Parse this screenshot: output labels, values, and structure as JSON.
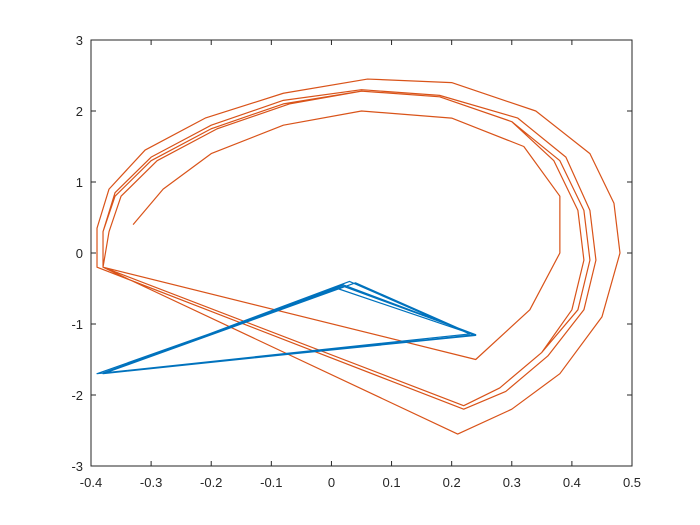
{
  "chart_data": {
    "type": "line",
    "xlim": [
      -0.4,
      0.5
    ],
    "xticks": [
      -0.4,
      -0.3,
      -0.2,
      -0.1,
      0,
      0.1,
      0.2,
      0.3,
      0.4,
      0.5
    ],
    "ylim": [
      -3,
      3
    ],
    "yticks": [
      -3,
      -2,
      -1,
      0,
      1,
      2,
      3
    ],
    "grid": false,
    "series": [
      {
        "color": "#d95319",
        "x": [
          -0.33,
          -0.28,
          -0.2,
          -0.08,
          0.05,
          0.2,
          0.32,
          0.38,
          0.38,
          0.33,
          0.24,
          -0.38,
          -0.37,
          -0.35,
          -0.29,
          -0.19,
          -0.07,
          0.05,
          0.18,
          0.3,
          0.37,
          0.41,
          0.42,
          0.4,
          0.35,
          0.28,
          0.22,
          -0.38,
          -0.38,
          -0.36,
          -0.3,
          -0.2,
          -0.08,
          0.05,
          0.18,
          0.31,
          0.39,
          0.43,
          0.44,
          0.42,
          0.36,
          0.29,
          0.22,
          -0.39,
          -0.39,
          -0.37,
          -0.31,
          -0.21,
          -0.08,
          0.06,
          0.2,
          0.34,
          0.43,
          0.47,
          0.48,
          0.45,
          0.38,
          0.3,
          0.21,
          -0.38,
          -0.38,
          -0.36,
          -0.3,
          -0.2,
          -0.08,
          0.05,
          0.18,
          0.3,
          0.38,
          0.42,
          0.43,
          0.41,
          0.35,
          0.28,
          0.22,
          -0.38
        ],
        "values": [
          0.4,
          0.9,
          1.4,
          1.8,
          2.0,
          1.9,
          1.5,
          0.8,
          0.0,
          -0.8,
          -1.5,
          -0.2,
          0.3,
          0.8,
          1.3,
          1.75,
          2.1,
          2.28,
          2.2,
          1.85,
          1.3,
          0.6,
          -0.1,
          -0.8,
          -1.4,
          -1.9,
          -2.15,
          -0.2,
          0.3,
          0.85,
          1.35,
          1.8,
          2.15,
          2.3,
          2.22,
          1.9,
          1.35,
          0.6,
          -0.1,
          -0.8,
          -1.45,
          -1.95,
          -2.2,
          -0.2,
          0.35,
          0.9,
          1.45,
          1.9,
          2.25,
          2.45,
          2.4,
          2.0,
          1.4,
          0.7,
          0.0,
          -0.9,
          -1.7,
          -2.2,
          -2.55,
          -0.2,
          0.3,
          0.8,
          1.3,
          1.75,
          2.1,
          2.28,
          2.2,
          1.85,
          1.3,
          0.6,
          -0.1,
          -0.8,
          -1.4,
          -1.9,
          -2.15,
          -0.2
        ]
      },
      {
        "color": "#0072bd",
        "x": [
          0.24,
          -0.38,
          0.02,
          0.24,
          -0.38,
          0.03,
          0.23,
          -0.38,
          0.01,
          0.24,
          -0.39,
          0.02,
          0.24,
          -0.38,
          0.04,
          0.23
        ],
        "values": [
          -1.15,
          -1.7,
          -0.45,
          -1.15,
          -1.7,
          -0.4,
          -1.14,
          -1.69,
          -0.5,
          -1.16,
          -1.7,
          -0.47,
          -1.15,
          -1.7,
          -0.42,
          -1.13
        ]
      }
    ]
  }
}
